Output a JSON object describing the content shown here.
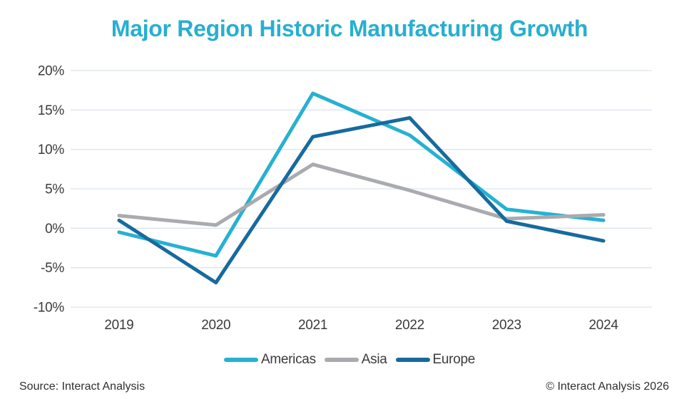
{
  "footer": {
    "source": "Source: Interact Analysis",
    "copyright": "© Interact Analysis 2026"
  },
  "chart_data": {
    "type": "line",
    "title": "Major Region Historic Manufacturing Growth",
    "categories": [
      "2019",
      "2020",
      "2021",
      "2022",
      "2023",
      "2024"
    ],
    "series": [
      {
        "name": "Americas",
        "color": "#27B1D1",
        "values": [
          -0.5,
          -3.5,
          17.1,
          11.8,
          2.4,
          1.0
        ]
      },
      {
        "name": "Asia",
        "color": "#A9ABAE",
        "values": [
          1.6,
          0.4,
          8.1,
          4.8,
          1.2,
          1.7
        ]
      },
      {
        "name": "Europe",
        "color": "#176A9E",
        "values": [
          1.0,
          -6.9,
          11.6,
          14.0,
          0.9,
          -1.6
        ]
      }
    ],
    "xlabel": "",
    "ylabel": "",
    "ylim": [
      -10,
      20
    ],
    "yticks": [
      20,
      15,
      10,
      5,
      0,
      -5,
      -10
    ],
    "ytick_suffix": "%",
    "grid": true,
    "legend_position": "bottom",
    "colors": {
      "title": "#27AFD1",
      "axis_text": "#3B3B3B",
      "gridline": "#DCE4EC"
    }
  }
}
